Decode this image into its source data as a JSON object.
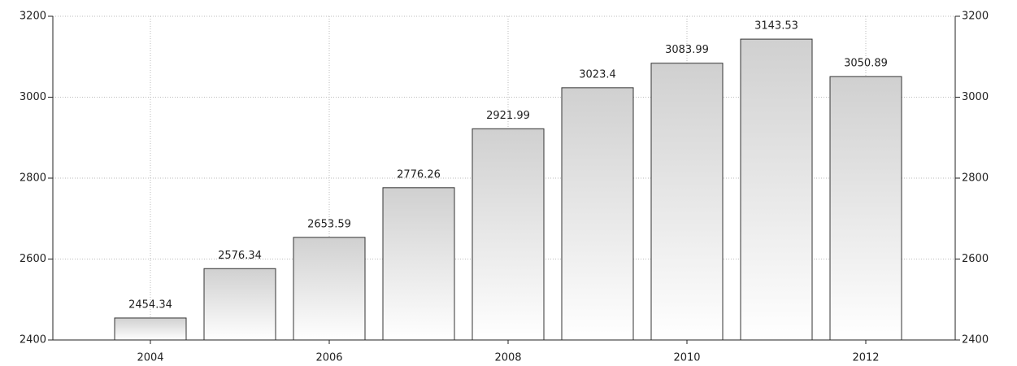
{
  "chart_data": {
    "type": "bar",
    "categories": [
      "2004",
      null,
      "2006",
      null,
      "2008",
      null,
      "2010",
      null,
      "2012"
    ],
    "values": [
      2454.34,
      2576.34,
      2653.59,
      2776.26,
      2921.99,
      3023.4,
      3083.99,
      3143.53,
      3050.89
    ],
    "color": "#d0d0d0",
    "ylim": [
      2400,
      3200
    ],
    "yticks": [
      2400,
      2600,
      2800,
      3000,
      3200
    ],
    "y2lim": [
      2400,
      3200
    ],
    "y2ticks": [
      2400,
      2600,
      2800,
      3000,
      3200
    ],
    "grid": true
  }
}
